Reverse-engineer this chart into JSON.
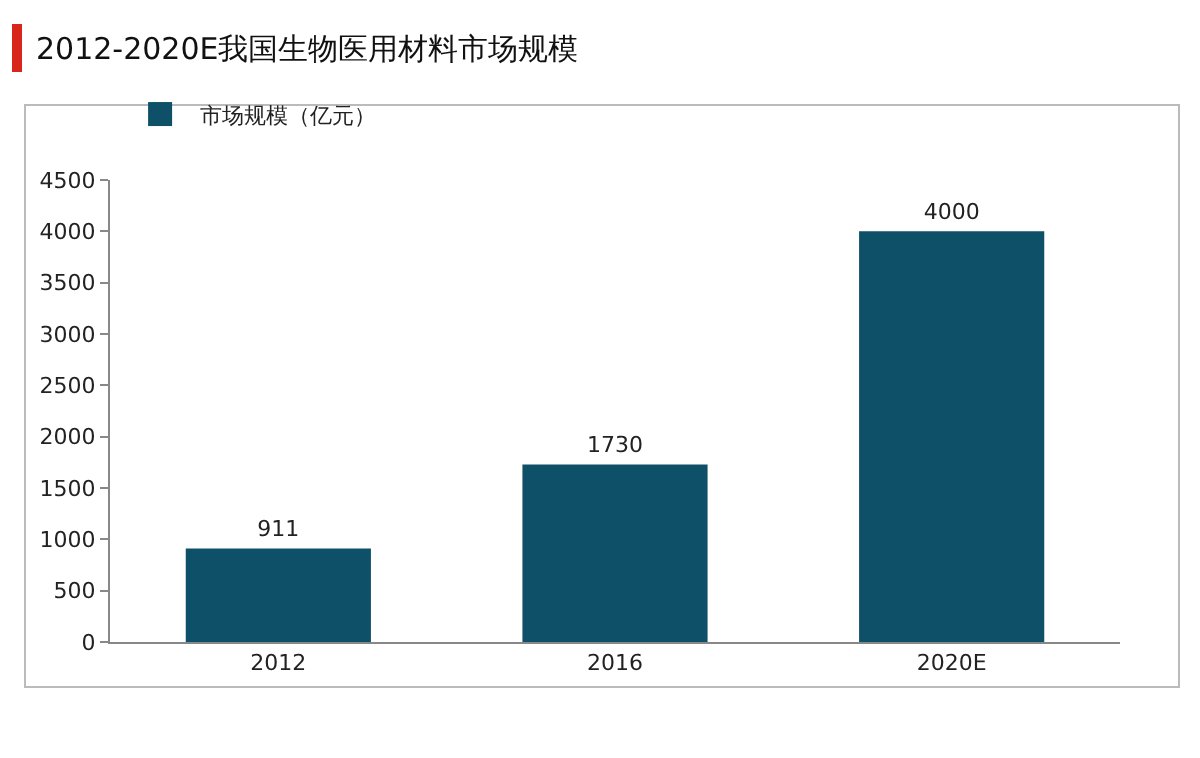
{
  "chart_data": {
    "type": "bar",
    "title": "2012-2020E我国生物医用材料市场规模",
    "categories": [
      "2012",
      "2016",
      "2020E"
    ],
    "series": [
      {
        "name": "市场规模（亿元）",
        "color": "#0e5068",
        "values": [
          911,
          1730,
          4000
        ]
      }
    ],
    "ylim": [
      0,
      4500
    ],
    "yticks": [
      0,
      500,
      1000,
      1500,
      2000,
      2500,
      3000,
      3500,
      4000,
      4500
    ],
    "grid": false,
    "legend": "top left",
    "data_labels": true
  }
}
